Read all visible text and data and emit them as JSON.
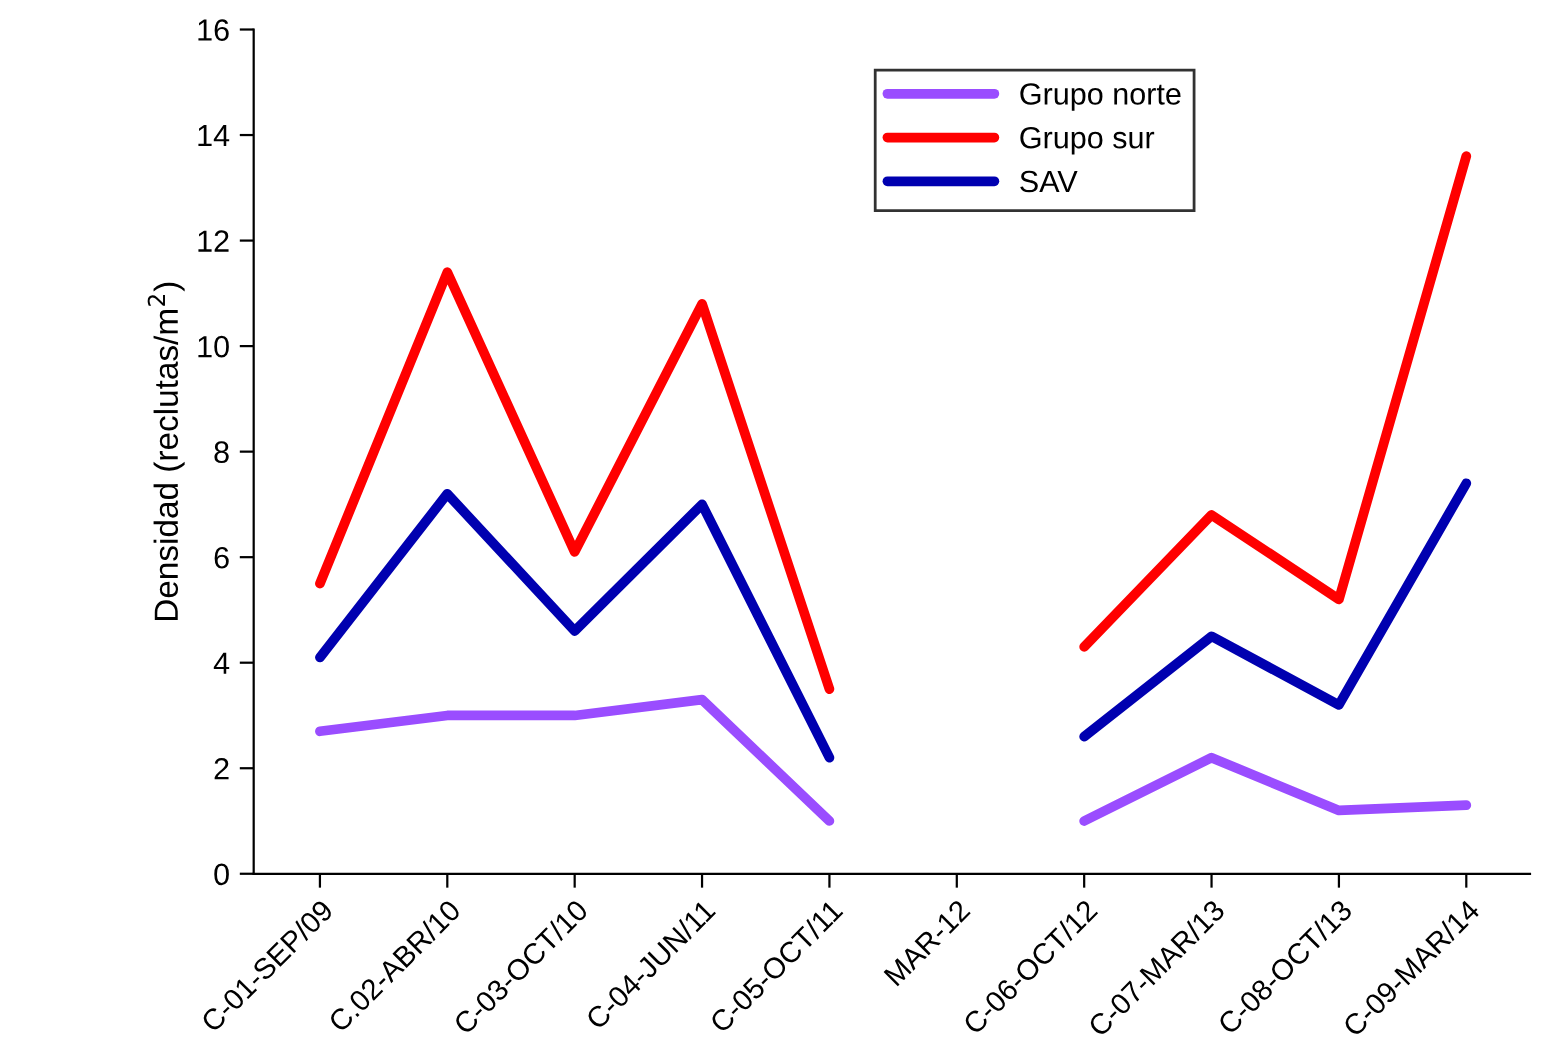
{
  "chart_data": {
    "type": "line",
    "ylabel": "Densidad (reclutas/m$^{2}$)",
    "categories": [
      "C-01-SEP/09",
      "C.02-ABR/10",
      "C-03-OCT/10",
      "C-04-JUN/11",
      "C-05-OCT/11",
      "MAR-12",
      "C-06-OCT/12",
      "C-07-MAR/13",
      "C-08-OCT/13",
      "C-09-MAR/14"
    ],
    "series": [
      {
        "name": "Grupo norte",
        "color": "#9a4dff",
        "values": [
          2.7,
          3.0,
          3.0,
          3.3,
          1.0,
          null,
          1.0,
          2.2,
          1.2,
          1.3
        ]
      },
      {
        "name": "Grupo sur",
        "color": "#ff0000",
        "values": [
          5.5,
          11.4,
          6.1,
          10.8,
          3.5,
          null,
          4.3,
          6.8,
          5.2,
          13.6
        ]
      },
      {
        "name": "SAV",
        "color": "#0000b0",
        "values": [
          4.1,
          7.2,
          4.6,
          7.0,
          2.2,
          null,
          2.6,
          4.5,
          3.2,
          7.4
        ]
      }
    ],
    "ylim": [
      0,
      16
    ],
    "yticks": [
      0,
      2,
      4,
      6,
      8,
      10,
      12,
      14,
      16
    ],
    "grid": false,
    "legend": "top right",
    "marker": "none",
    "line_style": "solid"
  }
}
